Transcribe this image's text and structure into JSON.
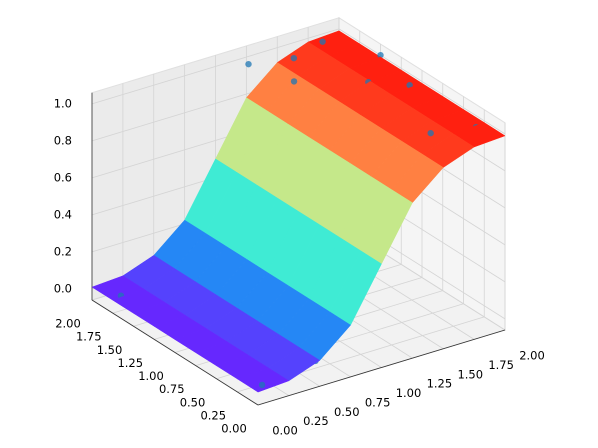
{
  "chart_data": {
    "type": "surface3d",
    "xlim": [
      0,
      2
    ],
    "ylim": [
      0,
      2
    ],
    "zlim": [
      -0.06,
      1.06
    ],
    "xticks": [
      {
        "value": 0,
        "label": "0.00"
      },
      {
        "value": 0.25,
        "label": "0.25"
      },
      {
        "value": 0.5,
        "label": "0.50"
      },
      {
        "value": 0.75,
        "label": "0.75"
      },
      {
        "value": 1,
        "label": "1.00"
      },
      {
        "value": 1.25,
        "label": "1.25"
      },
      {
        "value": 1.5,
        "label": "1.50"
      },
      {
        "value": 1.75,
        "label": "1.75"
      },
      {
        "value": 2,
        "label": "2.00"
      }
    ],
    "yticks": [
      {
        "value": 0,
        "label": "0.00"
      },
      {
        "value": 0.25,
        "label": "0.25"
      },
      {
        "value": 0.5,
        "label": "0.50"
      },
      {
        "value": 0.75,
        "label": "0.75"
      },
      {
        "value": 1,
        "label": "1.00"
      },
      {
        "value": 1.25,
        "label": "1.25"
      },
      {
        "value": 1.5,
        "label": "1.50"
      },
      {
        "value": 1.75,
        "label": "1.75"
      },
      {
        "value": 2,
        "label": "2.00"
      }
    ],
    "zticks": [
      {
        "value": 0,
        "label": "0.0"
      },
      {
        "value": 0.2,
        "label": "0.2"
      },
      {
        "value": 0.4,
        "label": "0.4"
      },
      {
        "value": 0.6,
        "label": "0.6"
      },
      {
        "value": 0.8,
        "label": "0.8"
      },
      {
        "value": 1,
        "label": "1.0"
      }
    ],
    "grid": true,
    "colormap": "rainbow",
    "surface": {
      "x": [
        0,
        0.25,
        0.5,
        0.75,
        1,
        1.25,
        1.5,
        1.75,
        2
      ],
      "y": [
        0,
        0.25,
        0.5,
        0.75,
        1,
        1.25,
        1.5,
        1.75,
        2
      ],
      "z": [
        [
          0.01,
          0.02,
          0.08,
          0.22,
          0.5,
          0.78,
          0.92,
          0.98,
          0.99
        ],
        [
          0.01,
          0.02,
          0.08,
          0.22,
          0.5,
          0.78,
          0.92,
          0.98,
          0.99
        ],
        [
          0.01,
          0.02,
          0.08,
          0.22,
          0.5,
          0.78,
          0.92,
          0.98,
          0.99
        ],
        [
          0.01,
          0.02,
          0.08,
          0.22,
          0.5,
          0.78,
          0.92,
          0.98,
          0.99
        ],
        [
          0.01,
          0.02,
          0.08,
          0.22,
          0.5,
          0.78,
          0.92,
          0.98,
          0.99
        ],
        [
          0.01,
          0.02,
          0.08,
          0.22,
          0.5,
          0.78,
          0.92,
          0.98,
          0.99
        ],
        [
          0.01,
          0.02,
          0.08,
          0.22,
          0.5,
          0.78,
          0.92,
          0.98,
          0.99
        ],
        [
          0.01,
          0.02,
          0.08,
          0.22,
          0.5,
          0.78,
          0.92,
          0.98,
          0.99
        ],
        [
          0.01,
          0.02,
          0.08,
          0.22,
          0.5,
          0.78,
          0.92,
          0.98,
          0.99
        ]
      ]
    },
    "scatter": {
      "color": "#1f77b4",
      "x": [
        1.9,
        1.6,
        2.0,
        1.8,
        1.5,
        1.2,
        1.9,
        1.3,
        1.7,
        0.1,
        0.3,
        0.2,
        0.5,
        0.4,
        0.1,
        0.7,
        0.6
      ],
      "y": [
        0.2,
        0.3,
        1.5,
        1.9,
        1.8,
        1.9,
        1.0,
        1.5,
        1.2,
        0.1,
        0.2,
        0.5,
        0.3,
        0.8,
        1.8,
        1.5,
        0.2
      ],
      "z": [
        1,
        1,
        1,
        1,
        1,
        1,
        1,
        1,
        1,
        0,
        0,
        0,
        0,
        0,
        0,
        0,
        0
      ]
    }
  }
}
